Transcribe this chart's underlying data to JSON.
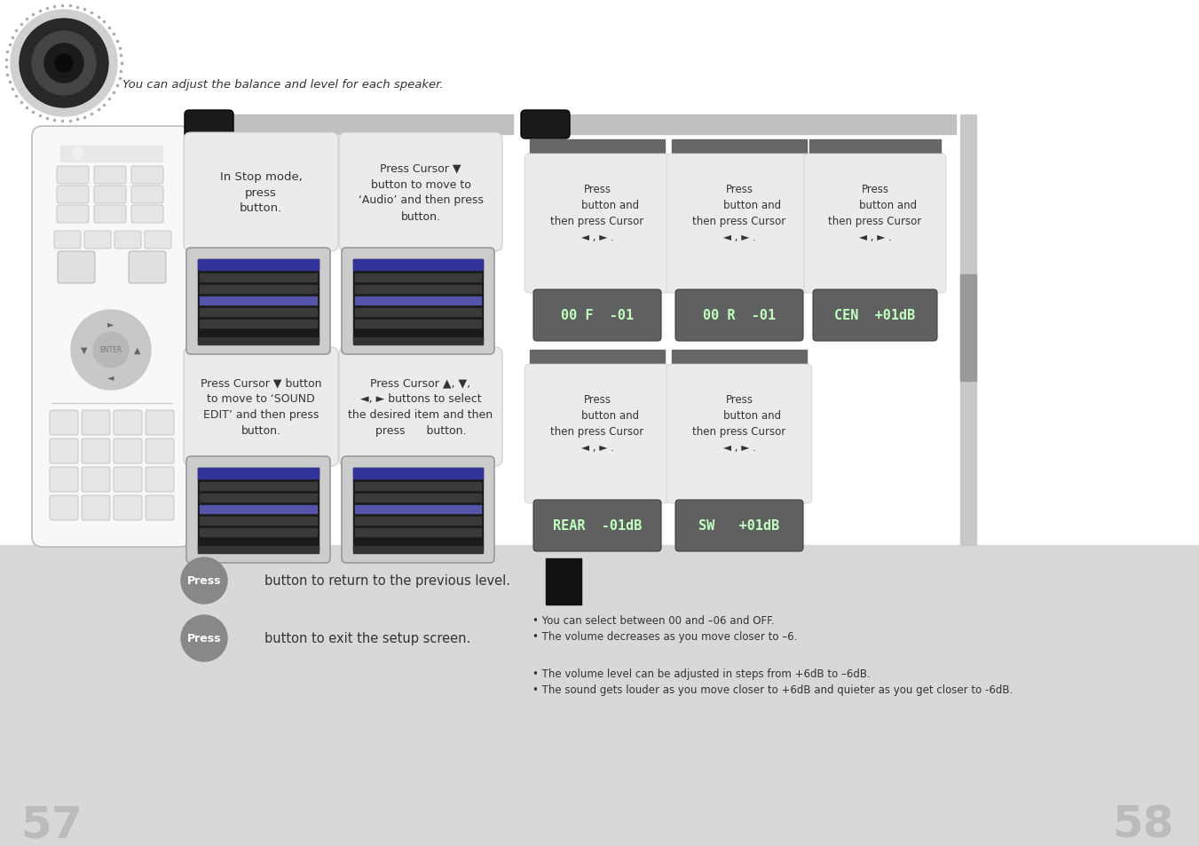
{
  "bg_color": "#d8d8d8",
  "white": "#ffffff",
  "light_gray_box": "#ebebeb",
  "light_gray_bar": "#cccccc",
  "dark_header": "#666666",
  "black_pill": "#1a1a1a",
  "text_color": "#333333",
  "page_left": "57",
  "page_right": "58",
  "top_text": "You can adjust the balance and level for each speaker.",
  "step1_title": "In Stop mode,\npress\nbutton.",
  "step2_title": "Press Cursor ▼\nbutton to move to\n‘Audio’ and then press\nbutton.",
  "step3_title": "Press Cursor ▼ button\nto move to ‘SOUND\nEDIT’ and then press\nbutton.",
  "step4_title": "Press Cursor ▲, ▼,\n◄, ► buttons to select\nthe desired item and then\npress      button.",
  "rc_top": "Press\n        button and\nthen press Cursor\n◄ , ► .",
  "display1": "00 F  -01",
  "display2": "00 R  -01",
  "display3": "CEN  +01dB",
  "display4": "REAR  -01dB",
  "display5": "SW   +01dB",
  "press1_text": "button to return to the previous level.",
  "press2_text": "button to exit the setup screen.",
  "note1": "• You can select between 00 and –06 and OFF.",
  "note2": "• The volume decreases as you move closer to –6.",
  "note3": "• The volume level can be adjusted in steps from +6dB to –6dB.",
  "note4": "• The sound gets louder as you move closer to +6dB and quieter as you get closer to -6dB."
}
